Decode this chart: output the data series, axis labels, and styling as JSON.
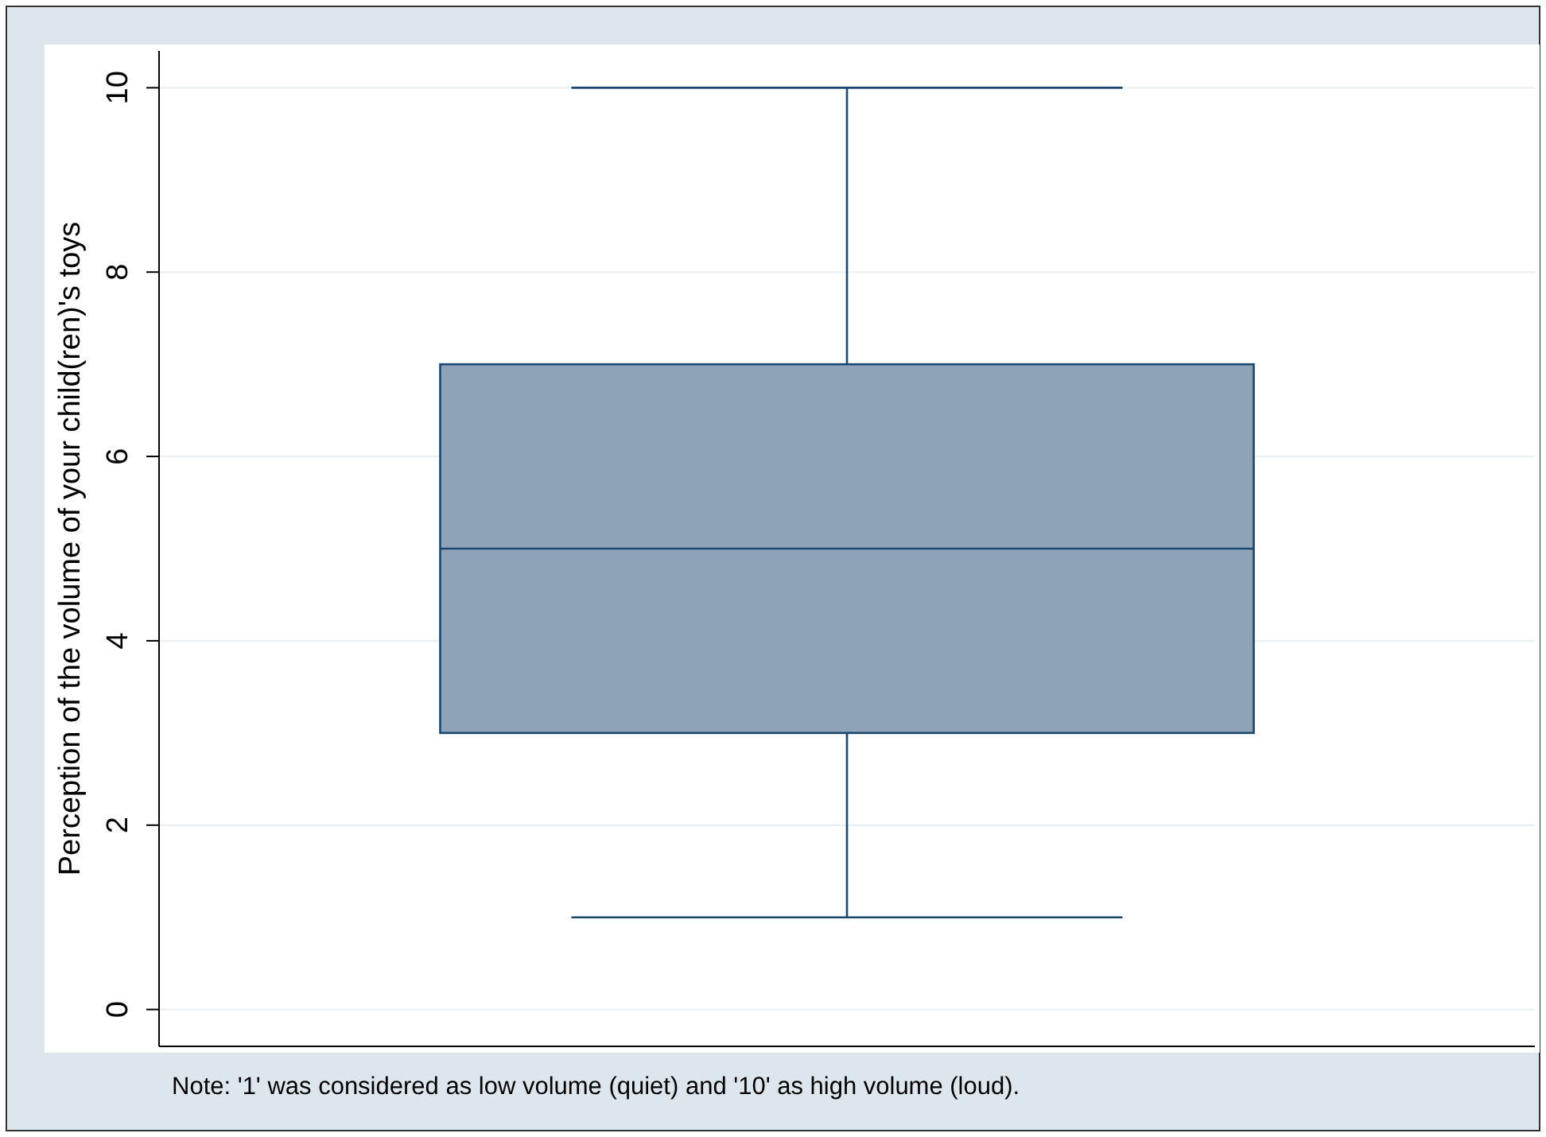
{
  "chart_data": {
    "type": "box",
    "ylabel": "Perception of the volume of your child(ren)'s toys",
    "categories": [
      null
    ],
    "boxes": [
      {
        "low": 1,
        "q1": 3,
        "median": 5,
        "q3": 7,
        "high": 10
      }
    ],
    "color": "#8ea3b8",
    "ylim": [
      -0.4,
      10.4
    ],
    "yticks": [
      0,
      2,
      4,
      6,
      8,
      10
    ],
    "grid": "y",
    "annotations": [
      "Note: '1' was considered as low volume (quiet) and '10' as high volume (loud)."
    ]
  }
}
